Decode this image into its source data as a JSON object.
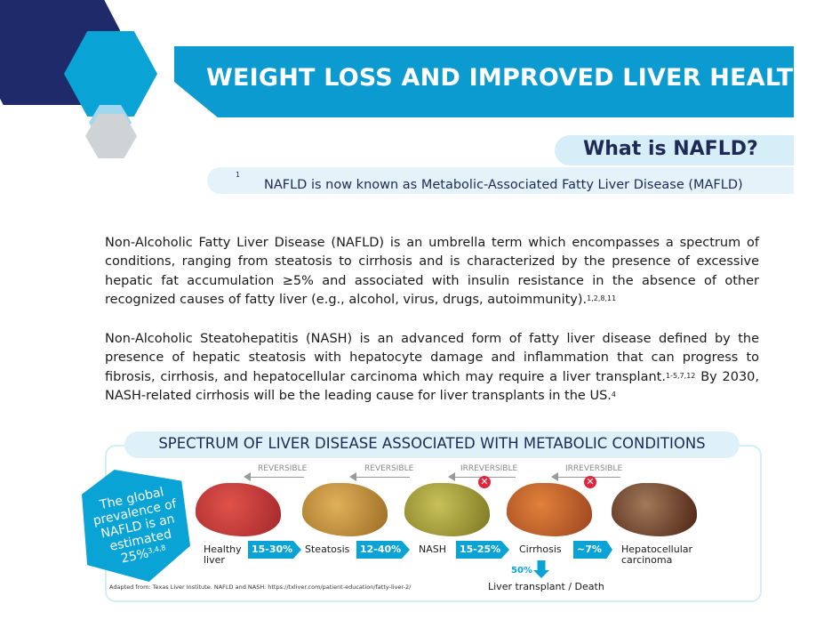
{
  "header": {
    "title": "WEIGHT LOSS AND IMPROVED LIVER HEALTH",
    "subtitle": "What is NAFLD?",
    "known_as": "NAFLD is now known as Metabolic-Associated Fatty Liver Disease (MAFLD)",
    "known_as_ref": "1"
  },
  "paragraphs": {
    "nafld": "Non-Alcoholic Fatty Liver Disease (NAFLD) is an umbrella term which encompasses a spectrum of conditions, ranging from steatosis to cirrhosis and is characterized by the presence of excessive hepatic fat accumulation ≥5% and associated with insulin resistance in the absence of other recognized causes of fatty liver (e.g., alcohol, virus, drugs, autoimmunity).",
    "nafld_ref": "1,2,8,11",
    "nash": "Non-Alcoholic Steatohepatitis (NASH) is an advanced form of fatty liver disease defined by the presence of hepatic steatosis with hepatocyte damage and inflammation that can progress to fibrosis, cirrhosis, and hepatocellular carcinoma which may require a liver transplant.",
    "nash_ref": "1-5,7,12",
    "nash2": "By 2030, NASH-related cirrhosis will be the leading cause for liver transplants in the US.",
    "nash2_ref": "4"
  },
  "spectrum": {
    "title": "SPECTRUM OF LIVER DISEASE ASSOCIATED WITH METABOLIC CONDITIONS",
    "badge": "The global prevalence of NAFLD is an estimated 25%",
    "badge_ref": "3,4,8",
    "reversibility": [
      "REVERSIBLE",
      "REVERSIBLE",
      "IRREVERSIBLE",
      "IRREVERSIBLE"
    ],
    "stages": [
      "Healthy liver",
      "Steatosis",
      "NASH",
      "Cirrhosis",
      "Hepatocellular carcinoma"
    ],
    "stage_line1": [
      "Healthy",
      "Steatosis",
      "NASH",
      "Cirrhosis",
      "Hepatocellular"
    ],
    "stage_line2": [
      "liver",
      "",
      "",
      "",
      "carcinoma"
    ],
    "progression_rates": [
      "15-30%",
      "12-40%",
      "15-25%",
      "~7%"
    ],
    "transplant_rate": "50%",
    "transplant_label": "Liver transplant / Death",
    "footnote": "Adapted from: Texas Liver Institute. NAFLD and NASH. https://txliver.com/patient-education/fatty-liver-2/"
  },
  "colors": {
    "brand_blue": "#0b9bd0",
    "navy": "#1e2a55",
    "light_blue": "#d6eef8",
    "warning_red": "#e0263c"
  }
}
